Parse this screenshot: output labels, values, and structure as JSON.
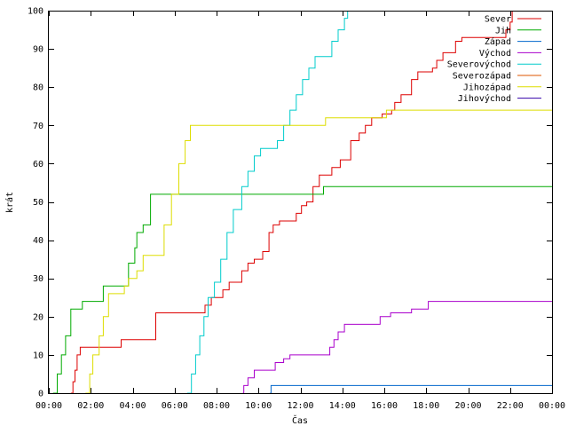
{
  "chart_data": {
    "type": "line",
    "xlabel": "Čas",
    "ylabel": "krát",
    "xlim": [
      0,
      24
    ],
    "ylim": [
      0,
      100
    ],
    "x_ticks": [
      {
        "v": 0,
        "label": "00:00"
      },
      {
        "v": 2,
        "label": "02:00"
      },
      {
        "v": 4,
        "label": "04:00"
      },
      {
        "v": 6,
        "label": "06:00"
      },
      {
        "v": 8,
        "label": "08:00"
      },
      {
        "v": 10,
        "label": "10:00"
      },
      {
        "v": 12,
        "label": "12:00"
      },
      {
        "v": 14,
        "label": "14:00"
      },
      {
        "v": 16,
        "label": "16:00"
      },
      {
        "v": 18,
        "label": "18:00"
      },
      {
        "v": 20,
        "label": "20:00"
      },
      {
        "v": 22,
        "label": "22:00"
      },
      {
        "v": 24,
        "label": "00:00"
      }
    ],
    "y_ticks": [
      {
        "v": 0,
        "label": "0"
      },
      {
        "v": 10,
        "label": "10"
      },
      {
        "v": 20,
        "label": "20"
      },
      {
        "v": 30,
        "label": "30"
      },
      {
        "v": 40,
        "label": "40"
      },
      {
        "v": 50,
        "label": "50"
      },
      {
        "v": 60,
        "label": "60"
      },
      {
        "v": 70,
        "label": "70"
      },
      {
        "v": 80,
        "label": "80"
      },
      {
        "v": 90,
        "label": "90"
      },
      {
        "v": 100,
        "label": "100"
      }
    ],
    "grid": false,
    "legend_position": "top-right",
    "series": [
      {
        "name": "Sever",
        "color": "#dd0000",
        "points": [
          [
            1.05,
            0
          ],
          [
            1.15,
            3
          ],
          [
            1.25,
            6
          ],
          [
            1.35,
            10
          ],
          [
            1.5,
            12
          ],
          [
            3.35,
            12
          ],
          [
            3.45,
            14
          ],
          [
            4.8,
            14
          ],
          [
            5.1,
            21
          ],
          [
            7.4,
            21
          ],
          [
            7.45,
            23
          ],
          [
            7.7,
            23
          ],
          [
            7.75,
            25
          ],
          [
            8.15,
            25
          ],
          [
            8.3,
            27
          ],
          [
            8.6,
            29
          ],
          [
            9.05,
            29
          ],
          [
            9.2,
            32
          ],
          [
            9.5,
            34
          ],
          [
            9.8,
            35
          ],
          [
            10.2,
            37
          ],
          [
            10.5,
            42
          ],
          [
            10.7,
            44
          ],
          [
            11,
            45
          ],
          [
            11.7,
            45
          ],
          [
            11.8,
            47
          ],
          [
            12.05,
            49
          ],
          [
            12.3,
            50
          ],
          [
            12.6,
            54
          ],
          [
            12.9,
            57
          ],
          [
            13.3,
            57
          ],
          [
            13.5,
            59
          ],
          [
            13.9,
            61
          ],
          [
            14.4,
            66
          ],
          [
            14.8,
            68
          ],
          [
            15.1,
            70
          ],
          [
            15.4,
            72
          ],
          [
            15.9,
            73
          ],
          [
            16.35,
            74
          ],
          [
            16.5,
            76
          ],
          [
            16.8,
            78
          ],
          [
            17.3,
            82
          ],
          [
            17.6,
            84
          ],
          [
            18.3,
            85
          ],
          [
            18.5,
            87
          ],
          [
            18.8,
            89
          ],
          [
            19.2,
            89
          ],
          [
            19.4,
            92
          ],
          [
            19.7,
            93
          ],
          [
            21.5,
            93
          ],
          [
            21.8,
            95
          ],
          [
            22,
            97
          ],
          [
            22.1,
            100
          ]
        ]
      },
      {
        "name": "Jih",
        "color": "#00aa00",
        "points": [
          [
            0.2,
            0
          ],
          [
            0.4,
            5
          ],
          [
            0.6,
            10
          ],
          [
            0.8,
            15
          ],
          [
            1.05,
            22
          ],
          [
            1.5,
            22
          ],
          [
            1.6,
            24
          ],
          [
            2.4,
            24
          ],
          [
            2.6,
            28
          ],
          [
            3.6,
            28
          ],
          [
            3.8,
            34
          ],
          [
            4.1,
            38
          ],
          [
            4.2,
            42
          ],
          [
            4.5,
            44
          ],
          [
            4.85,
            52
          ],
          [
            13.0,
            52
          ],
          [
            13.1,
            54
          ],
          [
            24,
            54
          ]
        ]
      },
      {
        "name": "Západ",
        "color": "#0066cc",
        "points": [
          [
            10.55,
            0
          ],
          [
            10.6,
            2
          ],
          [
            24,
            2
          ]
        ]
      },
      {
        "name": "Východ",
        "color": "#aa00cc",
        "points": [
          [
            9.25,
            0
          ],
          [
            9.3,
            2
          ],
          [
            9.5,
            4
          ],
          [
            9.8,
            6
          ],
          [
            10.6,
            6
          ],
          [
            10.8,
            8
          ],
          [
            11.2,
            9
          ],
          [
            11.5,
            10
          ],
          [
            13.2,
            10
          ],
          [
            13.4,
            12
          ],
          [
            13.6,
            14
          ],
          [
            13.8,
            16
          ],
          [
            14.1,
            18
          ],
          [
            15.6,
            18
          ],
          [
            15.8,
            20
          ],
          [
            16.1,
            20
          ],
          [
            16.3,
            21
          ],
          [
            17.1,
            21
          ],
          [
            17.3,
            22
          ],
          [
            17.9,
            22
          ],
          [
            18.1,
            24
          ],
          [
            24,
            24
          ]
        ]
      },
      {
        "name": "Severovýchod",
        "color": "#00cccc",
        "points": [
          [
            6.6,
            0
          ],
          [
            6.8,
            5
          ],
          [
            7.0,
            10
          ],
          [
            7.2,
            15
          ],
          [
            7.4,
            20
          ],
          [
            7.6,
            25
          ],
          [
            7.9,
            29
          ],
          [
            8.2,
            35
          ],
          [
            8.5,
            42
          ],
          [
            8.8,
            48
          ],
          [
            9.2,
            54
          ],
          [
            9.5,
            58
          ],
          [
            9.8,
            62
          ],
          [
            10.1,
            64
          ],
          [
            10.7,
            64
          ],
          [
            10.9,
            66
          ],
          [
            11.2,
            70
          ],
          [
            11.5,
            74
          ],
          [
            11.8,
            78
          ],
          [
            12.1,
            82
          ],
          [
            12.4,
            85
          ],
          [
            12.7,
            88
          ],
          [
            13.2,
            88
          ],
          [
            13.5,
            92
          ],
          [
            13.8,
            95
          ],
          [
            14.1,
            98
          ],
          [
            14.25,
            100
          ]
        ]
      },
      {
        "name": "Severozápad",
        "color": "#dd5500",
        "points": []
      },
      {
        "name": "Jihozápad",
        "color": "#dddd00",
        "points": [
          [
            1.75,
            0
          ],
          [
            1.95,
            5
          ],
          [
            2.1,
            10
          ],
          [
            2.4,
            15
          ],
          [
            2.6,
            20
          ],
          [
            2.85,
            26
          ],
          [
            3.6,
            28
          ],
          [
            3.8,
            30
          ],
          [
            4.2,
            32
          ],
          [
            4.5,
            36
          ],
          [
            5.2,
            36
          ],
          [
            5.5,
            44
          ],
          [
            5.85,
            52
          ],
          [
            6.2,
            60
          ],
          [
            6.5,
            66
          ],
          [
            6.75,
            70
          ],
          [
            13.0,
            70
          ],
          [
            13.2,
            72
          ],
          [
            15.9,
            72
          ],
          [
            16.1,
            74
          ],
          [
            24,
            74
          ]
        ]
      },
      {
        "name": "Jihovýchod",
        "color": "#3300aa",
        "points": []
      }
    ]
  }
}
